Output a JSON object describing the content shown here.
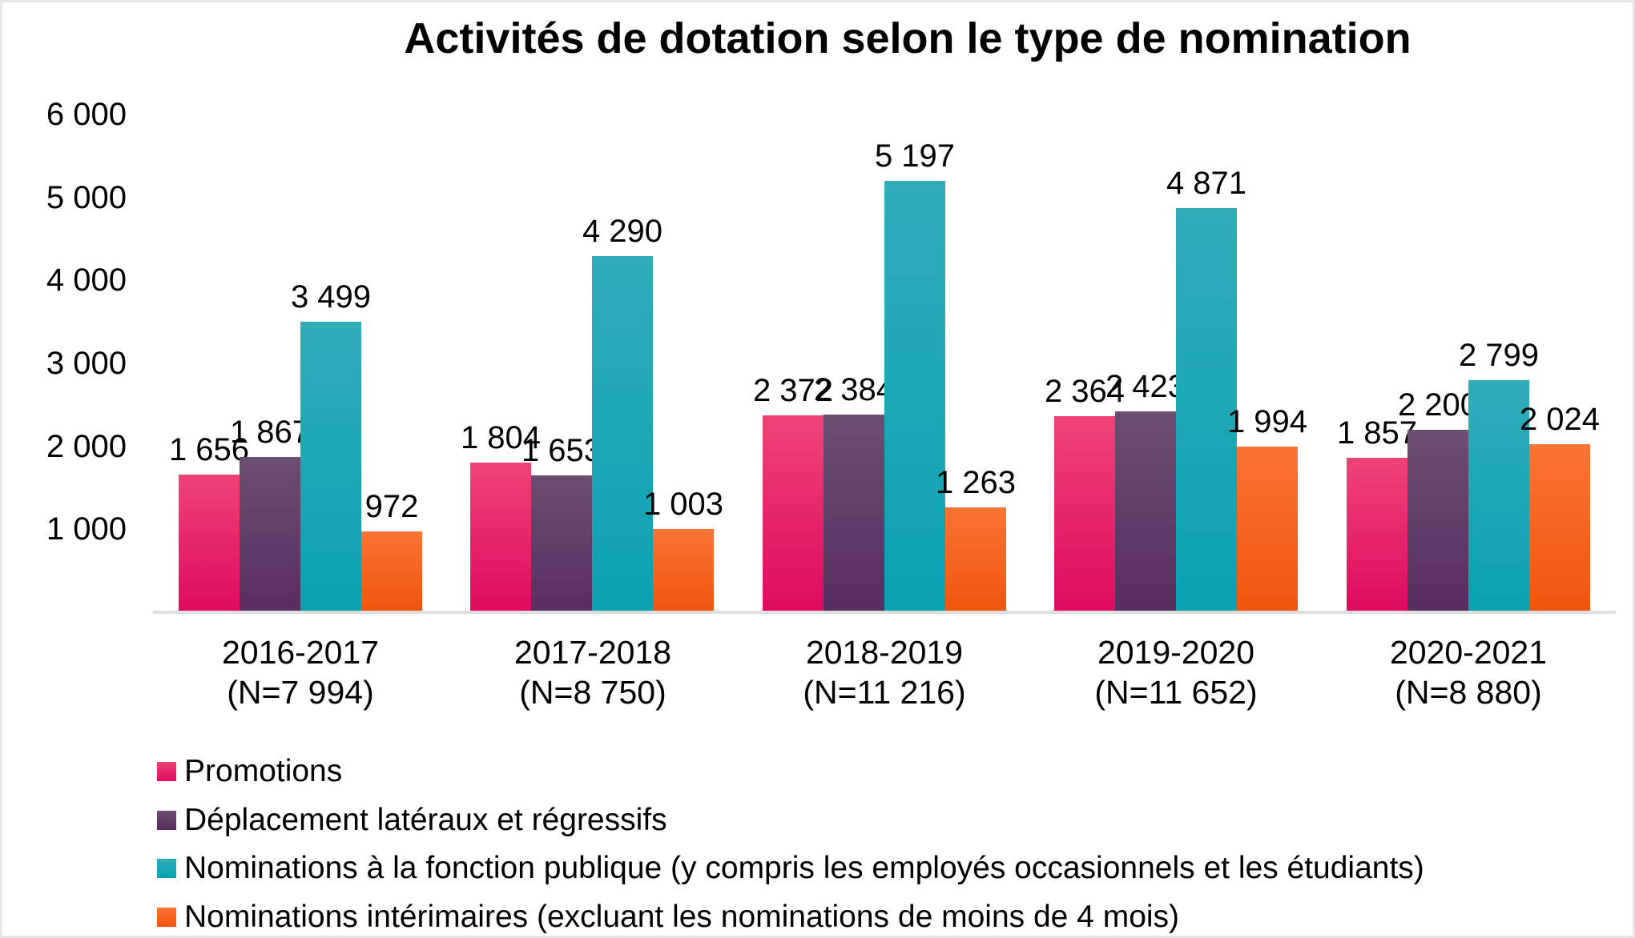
{
  "title": "Activités de dotation selon le type de nomination",
  "chart_data": {
    "type": "bar",
    "title": "Activités de dotation selon le type de nomination",
    "grid": false,
    "legend_position": "bottom-left",
    "background": "#FFFFFF",
    "axis_line_color": "#DEDEDE",
    "text_color": "#000000",
    "ylim": [
      0,
      6000
    ],
    "yticks": [
      {
        "value": 1000,
        "label": "1 000"
      },
      {
        "value": 2000,
        "label": "2 000"
      },
      {
        "value": 3000,
        "label": "3 000"
      },
      {
        "value": 4000,
        "label": "4 000"
      },
      {
        "value": 5000,
        "label": "5 000"
      },
      {
        "value": 6000,
        "label": "6 000"
      }
    ],
    "categories": [
      {
        "label": "2016-2017",
        "sublabel": "(N=7 994)"
      },
      {
        "label": "2017-2018",
        "sublabel": "(N=8 750)"
      },
      {
        "label": "2018-2019",
        "sublabel": "(N=11 216)"
      },
      {
        "label": "2019-2020",
        "sublabel": "(N=11 652)"
      },
      {
        "label": "2020-2021",
        "sublabel": "(N=8 880)"
      }
    ],
    "series": [
      {
        "key": "promotions",
        "name": "Promotions",
        "color_top": "#EE4377",
        "color_bottom": "#DF0A60",
        "values": [
          1656,
          1804,
          2372,
          2364,
          1857
        ],
        "value_labels": [
          "1 656",
          "1 804",
          "2 372",
          "2 364",
          "1 857"
        ]
      },
      {
        "key": "deplacements-lateraux-regressifs",
        "name": "Déplacement latéraux et régressifs",
        "color_top": "#6D4E73",
        "color_bottom": "#572D5F",
        "values": [
          1867,
          1653,
          2384,
          2423,
          2200
        ],
        "value_labels": [
          "1 867",
          "1 653",
          "2 384",
          "2 423",
          "2 200"
        ]
      },
      {
        "key": "nominations-fonction-publique",
        "name": "Nominations à la fonction publique (y compris les employés occasionnels et les étudiants)",
        "color_top": "#30ADB9",
        "color_bottom": "#0AA1B1",
        "values": [
          3499,
          4290,
          5197,
          4871,
          2799
        ],
        "value_labels": [
          "3 499",
          "4 290",
          "5 197",
          "4 871",
          "2 799"
        ]
      },
      {
        "key": "nominations-interimaires",
        "name": "Nominations intérimaires (excluant les nominations de moins de 4 mois)",
        "color_top": "#F97434",
        "color_bottom": "#F0560C",
        "values": [
          972,
          1003,
          1263,
          1994,
          2024
        ],
        "value_labels": [
          "972",
          "1 003",
          "1 263",
          "1 994",
          "2 024"
        ]
      }
    ]
  }
}
